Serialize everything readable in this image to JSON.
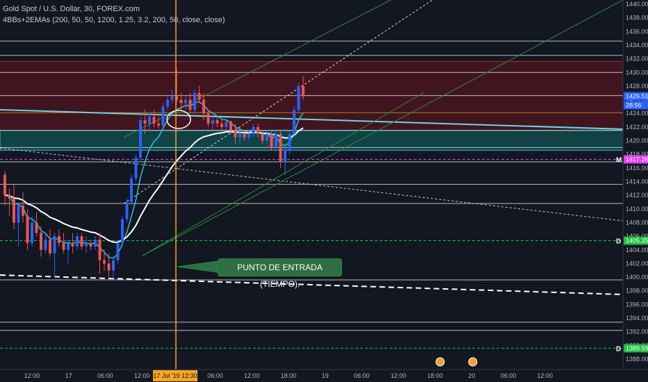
{
  "header": {
    "symbol_line": "Gold Spot / U.S. Dollar, 30, FOREX.com",
    "indicator_line": "4BBs+2EMAs (200, 50, 50, 1200, 1.25, 3.2, 200, 50, close, close)"
  },
  "annotation": {
    "callout_text": "PUNTO DE ENTRADA (TIEMPO)."
  },
  "colors": {
    "background": "#131722",
    "bull_candle": "#2962ff",
    "bear_candle": "#ef5350",
    "entry_line": "#f5a623",
    "resistance_zone": "#4a1520",
    "support_zone": "#124a4c",
    "ema_fast": "#26c6da",
    "ema_slow": "#ffffff",
    "channel": "#2e8b3e",
    "magenta": "#e040fb",
    "green_badge": "#1fbf3f"
  },
  "chart_data": {
    "type": "candlestick",
    "title": "Gold Spot / U.S. Dollar, 30, FOREX.com",
    "ylim": [
      1387,
      1441
    ],
    "y_ticks": [
      1388,
      1390,
      1392,
      1394,
      1396,
      1398,
      1400,
      1402,
      1404,
      1406,
      1408,
      1410,
      1412,
      1414,
      1416,
      1418,
      1420,
      1422,
      1424,
      1426,
      1428,
      1430,
      1432,
      1434,
      1436,
      1438,
      1440
    ],
    "x_ticks": [
      "12:00",
      "17",
      "06:00",
      "12:00",
      "18",
      "06:00",
      "12:00",
      "18:00",
      "19",
      "06:00",
      "12:00",
      "18:00",
      "20",
      "06:00",
      "12:00"
    ],
    "entry_time_label": "17 Jul '19   12:30",
    "price_labels": [
      {
        "text": "1426.51",
        "value": 1426.51,
        "color": "#2962ff"
      },
      {
        "text": "28:56",
        "value": 1425.2,
        "color": "#2962ff"
      },
      {
        "text": "1417.26",
        "value": 1417.26,
        "color": "#e040fb"
      },
      {
        "text": "1405.35",
        "value": 1405.35,
        "color": "#1fbf3f"
      },
      {
        "text": "1389.59",
        "value": 1389.59,
        "color": "#1fbf3f"
      }
    ],
    "side_markers": [
      {
        "text": "M",
        "value": 1417.26
      },
      {
        "text": "D",
        "value": 1405.35
      },
      {
        "text": "D",
        "value": 1389.59
      }
    ],
    "horizontal_levels": [
      1434.6,
      1432.5,
      1430.0,
      1426.6,
      1424.1,
      1421.5,
      1419.0,
      1416.9,
      1413.6,
      1410.8,
      1399.6,
      1393.4,
      1392.2
    ],
    "zones": [
      {
        "name": "resistance",
        "from": 1421.5,
        "to": 1431.6
      },
      {
        "name": "support",
        "from": 1418.6,
        "to": 1421.5
      }
    ],
    "candles": [
      {
        "o": 1415.0,
        "h": 1415.5,
        "l": 1410.5,
        "c": 1412.0
      },
      {
        "o": 1412.0,
        "h": 1413.0,
        "l": 1409.0,
        "c": 1411.5
      },
      {
        "o": 1411.5,
        "h": 1413.5,
        "l": 1407.0,
        "c": 1408.0
      },
      {
        "o": 1408.0,
        "h": 1411.0,
        "l": 1404.5,
        "c": 1410.5
      },
      {
        "o": 1410.5,
        "h": 1412.5,
        "l": 1408.0,
        "c": 1409.0
      },
      {
        "o": 1409.0,
        "h": 1410.0,
        "l": 1404.0,
        "c": 1405.0
      },
      {
        "o": 1405.0,
        "h": 1409.0,
        "l": 1404.5,
        "c": 1408.0
      },
      {
        "o": 1408.0,
        "h": 1409.5,
        "l": 1406.0,
        "c": 1406.5
      },
      {
        "o": 1406.5,
        "h": 1407.5,
        "l": 1403.0,
        "c": 1404.0
      },
      {
        "o": 1404.0,
        "h": 1406.5,
        "l": 1403.5,
        "c": 1405.5
      },
      {
        "o": 1405.5,
        "h": 1407.0,
        "l": 1403.0,
        "c": 1403.5
      },
      {
        "o": 1403.5,
        "h": 1406.5,
        "l": 1400.0,
        "c": 1406.0
      },
      {
        "o": 1406.0,
        "h": 1407.0,
        "l": 1404.5,
        "c": 1405.0
      },
      {
        "o": 1405.0,
        "h": 1406.5,
        "l": 1403.5,
        "c": 1404.0
      },
      {
        "o": 1404.0,
        "h": 1405.5,
        "l": 1402.0,
        "c": 1405.0
      },
      {
        "o": 1405.0,
        "h": 1406.5,
        "l": 1403.5,
        "c": 1404.5
      },
      {
        "o": 1404.5,
        "h": 1406.5,
        "l": 1404.0,
        "c": 1406.0
      },
      {
        "o": 1406.0,
        "h": 1406.5,
        "l": 1404.0,
        "c": 1404.5
      },
      {
        "o": 1404.5,
        "h": 1406.0,
        "l": 1403.5,
        "c": 1405.0
      },
      {
        "o": 1405.0,
        "h": 1405.5,
        "l": 1404.0,
        "c": 1404.5
      },
      {
        "o": 1404.5,
        "h": 1406.0,
        "l": 1404.0,
        "c": 1405.5
      },
      {
        "o": 1405.5,
        "h": 1406.5,
        "l": 1400.5,
        "c": 1402.5
      },
      {
        "o": 1402.5,
        "h": 1404.0,
        "l": 1401.0,
        "c": 1402.0
      },
      {
        "o": 1402.0,
        "h": 1403.5,
        "l": 1400.0,
        "c": 1401.0
      },
      {
        "o": 1401.0,
        "h": 1403.0,
        "l": 1399.8,
        "c": 1402.5
      },
      {
        "o": 1402.5,
        "h": 1405.5,
        "l": 1402.0,
        "c": 1405.0
      },
      {
        "o": 1405.0,
        "h": 1409.0,
        "l": 1404.5,
        "c": 1408.5
      },
      {
        "o": 1408.5,
        "h": 1411.5,
        "l": 1408.0,
        "c": 1411.0
      },
      {
        "o": 1411.0,
        "h": 1415.0,
        "l": 1410.5,
        "c": 1414.5
      },
      {
        "o": 1414.5,
        "h": 1418.0,
        "l": 1414.0,
        "c": 1417.5
      },
      {
        "o": 1417.5,
        "h": 1423.5,
        "l": 1417.0,
        "c": 1423.0
      },
      {
        "o": 1423.0,
        "h": 1424.5,
        "l": 1421.0,
        "c": 1422.5
      },
      {
        "o": 1422.5,
        "h": 1424.0,
        "l": 1421.5,
        "c": 1423.5
      },
      {
        "o": 1423.5,
        "h": 1424.5,
        "l": 1422.0,
        "c": 1422.5
      },
      {
        "o": 1422.5,
        "h": 1423.5,
        "l": 1421.8,
        "c": 1422.2
      },
      {
        "o": 1422.2,
        "h": 1425.5,
        "l": 1422.0,
        "c": 1425.0
      },
      {
        "o": 1425.0,
        "h": 1426.5,
        "l": 1424.5,
        "c": 1426.0
      },
      {
        "o": 1426.0,
        "h": 1427.5,
        "l": 1425.5,
        "c": 1426.5
      },
      {
        "o": 1426.5,
        "h": 1430.5,
        "l": 1425.5,
        "c": 1426.0
      },
      {
        "o": 1426.0,
        "h": 1427.0,
        "l": 1424.5,
        "c": 1425.5
      },
      {
        "o": 1425.5,
        "h": 1426.5,
        "l": 1424.5,
        "c": 1426.0
      },
      {
        "o": 1426.0,
        "h": 1427.0,
        "l": 1424.0,
        "c": 1424.5
      },
      {
        "o": 1424.5,
        "h": 1427.5,
        "l": 1424.0,
        "c": 1427.0
      },
      {
        "o": 1427.0,
        "h": 1428.0,
        "l": 1425.5,
        "c": 1426.0
      },
      {
        "o": 1426.0,
        "h": 1427.0,
        "l": 1423.0,
        "c": 1424.0
      },
      {
        "o": 1424.0,
        "h": 1424.5,
        "l": 1422.0,
        "c": 1422.5
      },
      {
        "o": 1422.5,
        "h": 1423.5,
        "l": 1421.5,
        "c": 1423.0
      },
      {
        "o": 1423.0,
        "h": 1423.5,
        "l": 1422.0,
        "c": 1422.5
      },
      {
        "o": 1422.5,
        "h": 1423.0,
        "l": 1421.5,
        "c": 1422.0
      },
      {
        "o": 1422.0,
        "h": 1423.0,
        "l": 1421.5,
        "c": 1422.8
      },
      {
        "o": 1422.8,
        "h": 1423.0,
        "l": 1421.0,
        "c": 1421.5
      },
      {
        "o": 1421.5,
        "h": 1422.5,
        "l": 1419.5,
        "c": 1420.5
      },
      {
        "o": 1420.5,
        "h": 1421.5,
        "l": 1419.5,
        "c": 1421.0
      },
      {
        "o": 1421.0,
        "h": 1421.5,
        "l": 1420.0,
        "c": 1420.5
      },
      {
        "o": 1420.5,
        "h": 1421.5,
        "l": 1420.0,
        "c": 1421.0
      },
      {
        "o": 1421.0,
        "h": 1422.5,
        "l": 1420.5,
        "c": 1422.0
      },
      {
        "o": 1422.0,
        "h": 1422.5,
        "l": 1420.5,
        "c": 1421.0
      },
      {
        "o": 1421.0,
        "h": 1421.5,
        "l": 1419.5,
        "c": 1420.0
      },
      {
        "o": 1420.0,
        "h": 1421.5,
        "l": 1419.5,
        "c": 1421.0
      },
      {
        "o": 1421.0,
        "h": 1421.5,
        "l": 1418.5,
        "c": 1419.0
      },
      {
        "o": 1419.0,
        "h": 1421.5,
        "l": 1418.5,
        "c": 1421.0
      },
      {
        "o": 1421.0,
        "h": 1421.5,
        "l": 1416.0,
        "c": 1417.0
      },
      {
        "o": 1417.0,
        "h": 1419.0,
        "l": 1415.0,
        "c": 1418.5
      },
      {
        "o": 1418.5,
        "h": 1421.5,
        "l": 1418.0,
        "c": 1421.0
      },
      {
        "o": 1421.0,
        "h": 1425.0,
        "l": 1420.5,
        "c": 1424.5
      },
      {
        "o": 1424.5,
        "h": 1428.5,
        "l": 1424.0,
        "c": 1428.0
      },
      {
        "o": 1428.0,
        "h": 1429.5,
        "l": 1426.0,
        "c": 1426.5
      }
    ]
  }
}
